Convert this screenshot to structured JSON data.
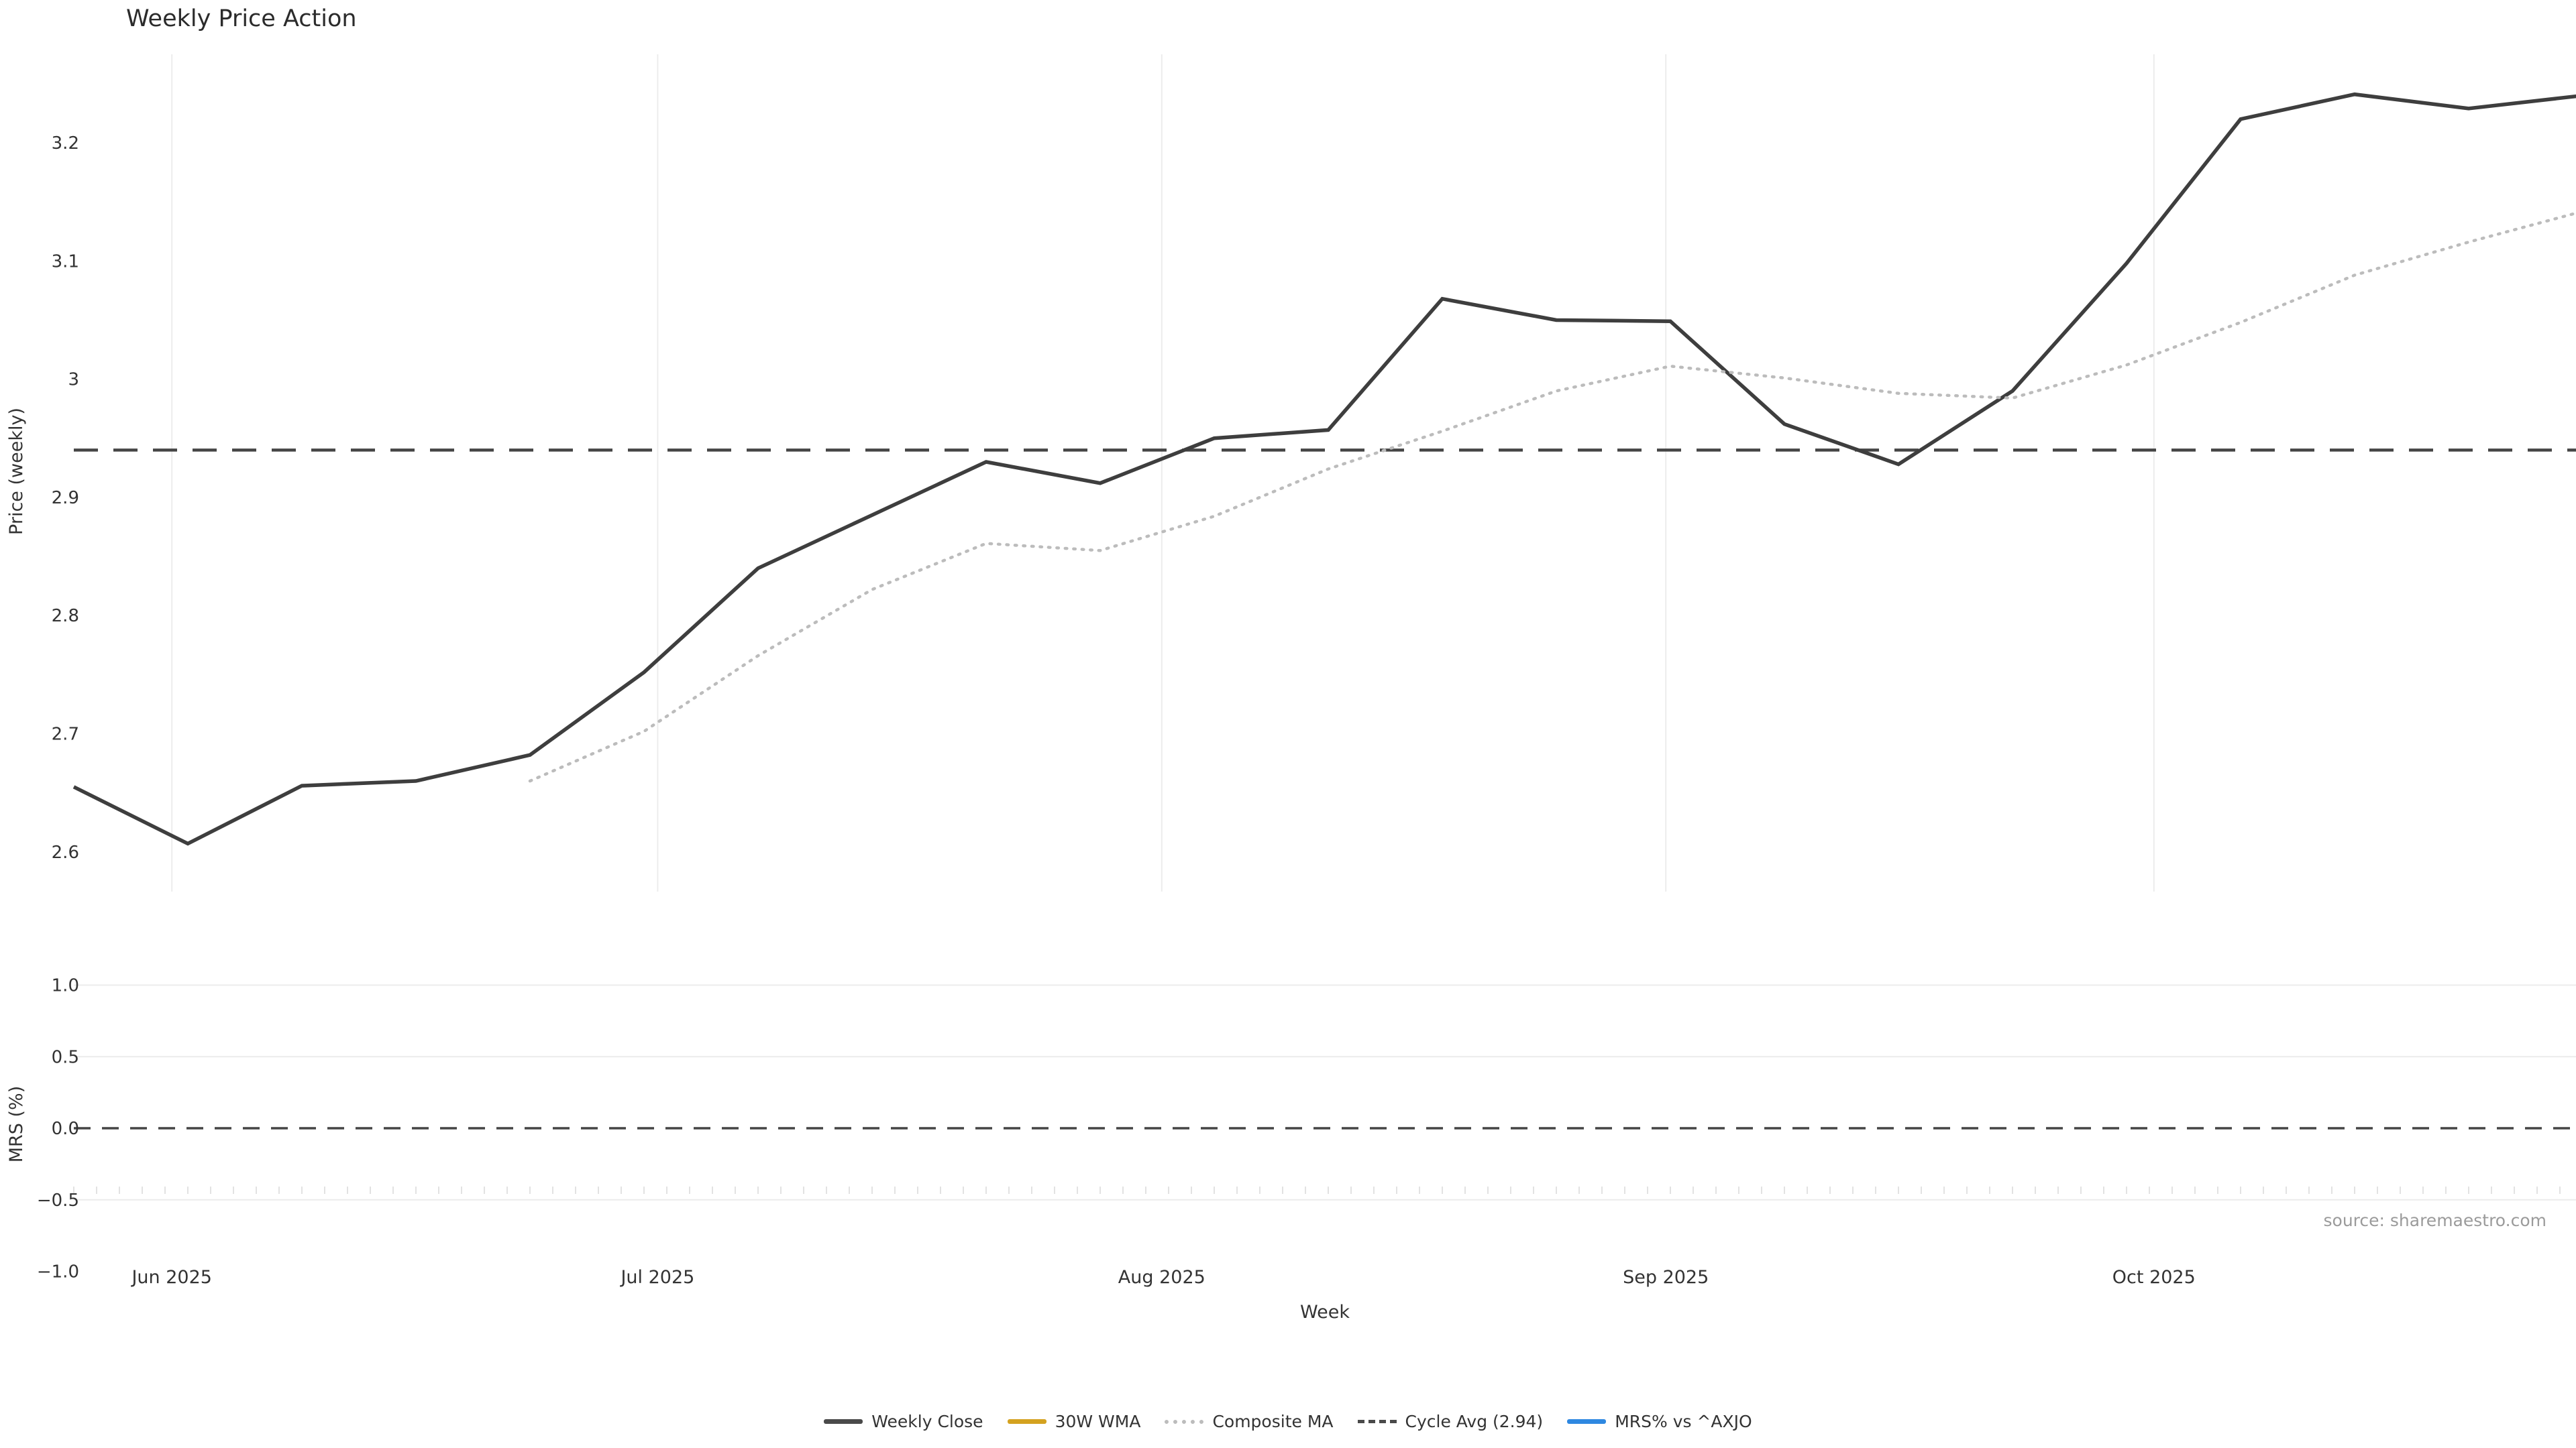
{
  "title": "Weekly Price Action",
  "source_note": "source: sharemaestro.com",
  "colors": {
    "weekly_close": "#3e3e3e",
    "wma_30w": "#d4a220",
    "composite_ma": "#bcbcbc",
    "cycle_avg": "#454545",
    "mrs": "#2e88e1",
    "gridline": "#ececec",
    "minor_tick": "#e2e2e2",
    "tick_text": "#333333",
    "title_text": "#2b2b2b",
    "source_text": "#9b9b9b"
  },
  "legend": {
    "items": [
      {
        "name": "weekly-close",
        "label": "Weekly Close",
        "style": "solid",
        "color": "#4a4a4a"
      },
      {
        "name": "wma-30w",
        "label": "30W WMA",
        "style": "solid",
        "color": "#d4a220"
      },
      {
        "name": "composite-ma",
        "label": "Composite MA",
        "style": "dotted",
        "color": "#bcbcbc"
      },
      {
        "name": "cycle-avg",
        "label": "Cycle Avg (2.94)",
        "style": "dashed",
        "color": "#4a4a4a"
      },
      {
        "name": "mrs-vs-axjo",
        "label": "MRS% vs ^AXJO",
        "style": "solid",
        "color": "#2e88e1"
      }
    ]
  },
  "chart_data": {
    "type": "line",
    "x_axis": {
      "label": "Week",
      "unit": "weekly",
      "n_points": 23,
      "month_ticks": [
        {
          "label": "Jun 2025",
          "week": 0.86
        },
        {
          "label": "Jul 2025",
          "week": 5.12
        },
        {
          "label": "Aug 2025",
          "week": 9.54
        },
        {
          "label": "Sep 2025",
          "week": 13.96
        },
        {
          "label": "Oct 2025",
          "week": 18.24
        }
      ]
    },
    "price_panel": {
      "ylabel": "Price (weekly)",
      "ylim": [
        2.57,
        3.27
      ],
      "grid": "vertical-months-only",
      "yticks": [
        {
          "label": "3.2",
          "value": 3.2
        },
        {
          "label": "3.1",
          "value": 3.1
        },
        {
          "label": "3",
          "value": 3.0
        },
        {
          "label": "2.9",
          "value": 2.9
        },
        {
          "label": "2.8",
          "value": 2.8
        },
        {
          "label": "2.7",
          "value": 2.7
        },
        {
          "label": "2.6",
          "value": 2.6
        }
      ],
      "cycle_avg": 2.94,
      "series": [
        {
          "name": "Weekly Close",
          "style": "solid",
          "start_week_index": 0,
          "values": [
            2.655,
            2.607,
            2.656,
            2.66,
            2.682,
            2.752,
            2.84,
            2.885,
            2.93,
            2.912,
            2.95,
            2.957,
            3.068,
            3.05,
            3.049,
            2.962,
            2.928,
            2.99,
            3.098,
            3.22,
            3.241,
            3.229,
            3.24
          ]
        },
        {
          "name": "30W WMA",
          "style": "solid",
          "start_week_index": 0,
          "values": []
        },
        {
          "name": "Composite MA",
          "style": "dotted",
          "start_week_index": 4,
          "values": [
            2.66,
            2.702,
            2.766,
            2.822,
            2.861,
            2.855,
            2.884,
            2.924,
            2.956,
            2.99,
            3.011,
            3.001,
            2.988,
            2.984,
            3.012,
            3.048,
            3.088,
            3.116,
            3.142
          ]
        }
      ]
    },
    "mrs_panel": {
      "ylabel": "MRS (%)",
      "ylim": [
        -1.0,
        1.0
      ],
      "grid": "horizontal-only",
      "yticks": [
        {
          "label": "1.0",
          "value": 1.0
        },
        {
          "label": "0.5",
          "value": 0.5
        },
        {
          "label": "0.0",
          "value": 0.0
        },
        {
          "label": "−0.5",
          "value": -0.5
        },
        {
          "label": "−1.0",
          "value": -1.0
        }
      ],
      "zero_line": 0.0,
      "series": [
        {
          "name": "MRS% vs ^AXJO",
          "style": "solid",
          "values": []
        }
      ]
    }
  }
}
